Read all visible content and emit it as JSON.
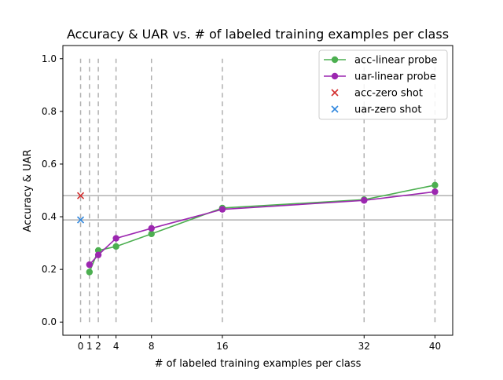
{
  "chart_data": {
    "type": "line",
    "title": "Accuracy & UAR vs. # of labeled training examples per class",
    "xlabel": "# of labeled training examples per class",
    "ylabel": "Accuracy & UAR",
    "xlim": [
      -2,
      42
    ],
    "ylim": [
      -0.05,
      1.05
    ],
    "x_ticks": [
      0,
      1,
      2,
      4,
      8,
      16,
      32,
      40
    ],
    "y_ticks": [
      "0.0",
      "0.2",
      "0.4",
      "0.6",
      "0.8",
      "1.0"
    ],
    "vertical_dashed_lines_at_x": [
      0,
      1,
      2,
      4,
      8,
      16,
      32,
      40
    ],
    "vertical_dashed_lines_range": [
      0.0,
      1.0
    ],
    "series": [
      {
        "name": "acc-linear probe",
        "color": "#4caf50",
        "marker": "circle",
        "x": [
          1,
          2,
          4,
          8,
          16,
          32,
          40
        ],
        "values": [
          0.19,
          0.272,
          0.287,
          0.335,
          0.433,
          0.465,
          0.52
        ]
      },
      {
        "name": "uar-linear probe",
        "color": "#9c27b0",
        "marker": "circle",
        "x": [
          1,
          2,
          4,
          8,
          16,
          32,
          40
        ],
        "values": [
          0.218,
          0.255,
          0.318,
          0.356,
          0.428,
          0.462,
          0.495
        ]
      }
    ],
    "zero_shot": [
      {
        "name": "acc-zero shot",
        "color": "#d32f2f",
        "marker": "x",
        "x": 0,
        "value": 0.48
      },
      {
        "name": "uar-zero shot",
        "color": "#2e86de",
        "marker": "x",
        "x": 0,
        "value": 0.388
      }
    ],
    "grid": false,
    "legend_position": "top-right"
  }
}
